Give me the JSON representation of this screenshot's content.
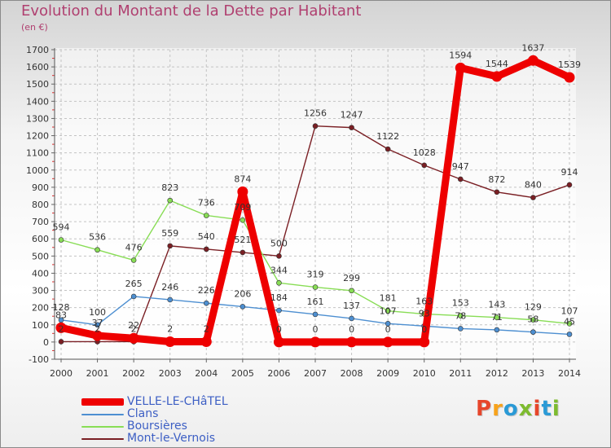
{
  "title": "Evolution du Montant de la Dette par Habitant",
  "unit": "(en €)",
  "logo": "Proxiti",
  "chart_data": {
    "type": "line",
    "x": [
      "2000",
      "2001",
      "2002",
      "2003",
      "2004",
      "2005",
      "2006",
      "2007",
      "2008",
      "2009",
      "2010",
      "2011",
      "2012",
      "2013",
      "2014"
    ],
    "yticks": [
      -100,
      0,
      100,
      200,
      300,
      400,
      500,
      600,
      700,
      800,
      900,
      1000,
      1100,
      1200,
      1300,
      1400,
      1500,
      1600,
      1700
    ],
    "ylim": [
      -100,
      1700
    ],
    "grid": true,
    "legend_position": "bottom-left",
    "series": [
      {
        "name": "VELLE-LE-CHâTEL",
        "color": "#ee0000",
        "values": [
          83,
          37,
          22,
          2,
          2,
          874,
          0,
          0,
          0,
          0,
          0,
          1594,
          1544,
          1637,
          1539
        ],
        "labels": [
          "83",
          "37",
          "22",
          "2",
          "2",
          "874",
          "0",
          "0",
          "0",
          "0",
          "0",
          "1594",
          "1544",
          "1637",
          "1539"
        ]
      },
      {
        "name": "Clans",
        "color": "#4d8fd1",
        "values": [
          128,
          100,
          265,
          246,
          226,
          206,
          184,
          161,
          137,
          107,
          93,
          78,
          71,
          58,
          45
        ],
        "labels": [
          "128",
          "100",
          "265",
          "246",
          "226",
          "206",
          "184",
          "161",
          "137",
          "107",
          "93",
          "78",
          "71",
          "58",
          "45"
        ]
      },
      {
        "name": "Boursières",
        "color": "#88dd55",
        "values": [
          594,
          536,
          476,
          823,
          736,
          709,
          344,
          319,
          299,
          181,
          163,
          153,
          143,
          129,
          107
        ],
        "labels": [
          "594",
          "536",
          "476",
          "823",
          "736",
          "709",
          "344",
          "319",
          "299",
          "181",
          "163",
          "153",
          "143",
          "129",
          "107"
        ]
      },
      {
        "name": "Mont-le-Vernois",
        "color": "#7a1f24",
        "values": [
          2,
          2,
          2,
          559,
          540,
          521,
          500,
          1256,
          1247,
          1122,
          1028,
          947,
          872,
          840,
          914
        ],
        "labels": [
          "2",
          "2",
          "2",
          "559",
          "540",
          "521",
          "500",
          "1256",
          "1247",
          "1122",
          "1028",
          "947",
          "872",
          "840",
          "914"
        ]
      }
    ]
  }
}
